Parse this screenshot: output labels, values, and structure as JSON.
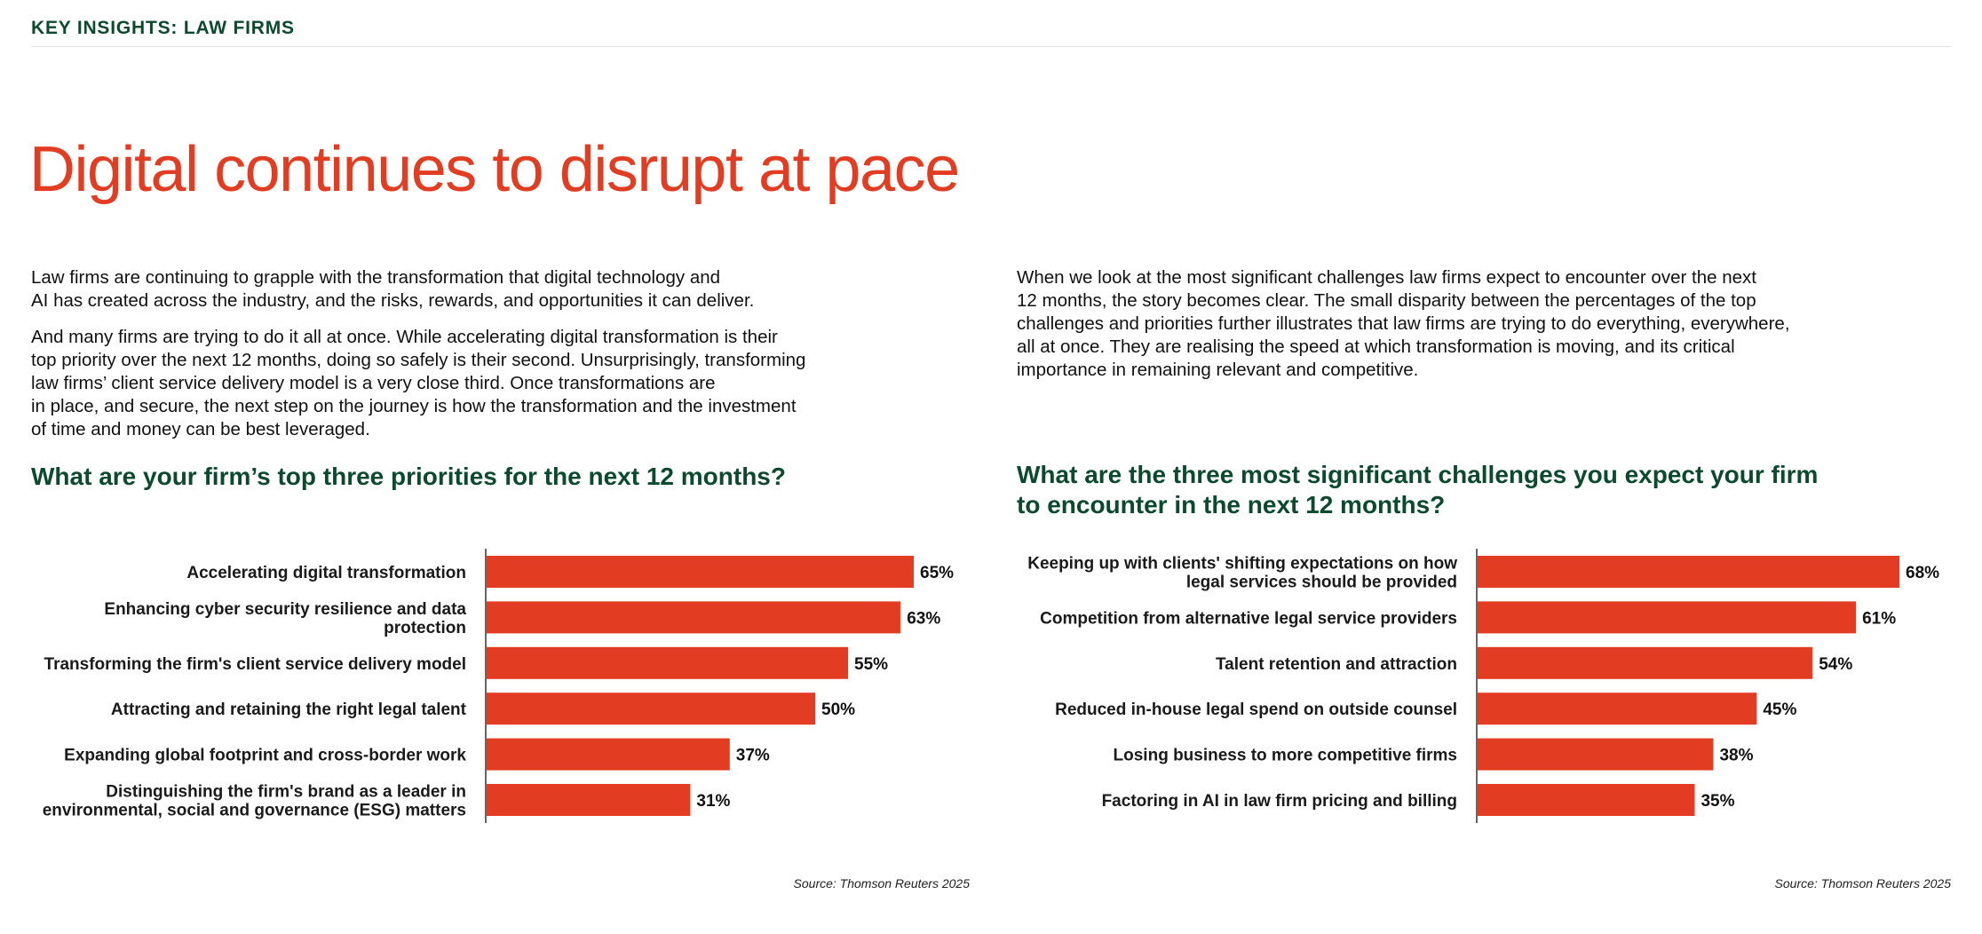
{
  "header": {
    "label": "KEY INSIGHTS: LAW FIRMS"
  },
  "title": "Digital continues to disrupt at pace",
  "intro": {
    "left": [
      "Law firms are continuing to grapple with the transformation that digital technology and\nAI has created across the industry, and the risks, rewards, and opportunities it can deliver.",
      "And many firms are trying to do it all at once. While accelerating digital transformation is their\ntop priority over the next 12 months, doing so safely is their second. Unsurprisingly, transforming\nlaw firms’ client service delivery model is a very close third. Once transformations are\nin place, and secure, the next step on the journey is how the transformation and the investment\nof time and money can be best leveraged."
    ],
    "right": [
      "When we look at the most significant challenges law firms expect to encounter over the next\n12 months, the story becomes clear. The small disparity between the percentages of the top\nchallenges and priorities further illustrates that law firms are trying to do everything, everywhere,\nall at once. They are realising the speed at which transformation is moving, and its critical\nimportance in remaining relevant and competitive."
    ]
  },
  "colors": {
    "bar": "#e23d22",
    "heading": "#0b4a2e",
    "title": "#e23d22"
  },
  "chart_data": [
    {
      "type": "bar",
      "orientation": "horizontal",
      "title": "What are your firm’s top three priorities for the next 12 months?",
      "categories": [
        "Accelerating digital transformation",
        "Enhancing cyber security resilience and data\nprotection",
        "Transforming the firm's client service delivery model",
        "Attracting and retaining the right legal talent",
        "Expanding global footprint and cross-border work",
        "Distinguishing the firm's brand as a leader in\nenvironmental, social and governance (ESG) matters"
      ],
      "values": [
        65,
        63,
        55,
        50,
        37,
        31
      ],
      "value_labels": [
        "65%",
        "63%",
        "55%",
        "50%",
        "37%",
        "31%"
      ],
      "unit": "%",
      "xlim": [
        0,
        65
      ],
      "source": "Source: Thomson Reuters 2025"
    },
    {
      "type": "bar",
      "orientation": "horizontal",
      "title": "What are the three most significant challenges you expect your firm\nto encounter in the next 12 months?",
      "categories": [
        "Keeping up with clients' shifting expectations on how\nlegal services should be provided",
        "Competition from alternative legal service providers",
        "Talent retention and attraction",
        "Reduced in-house legal spend on outside counsel",
        "Losing business to more competitive firms",
        "Factoring in AI in law firm pricing and billing"
      ],
      "values": [
        68,
        61,
        54,
        45,
        38,
        35
      ],
      "value_labels": [
        "68%",
        "61%",
        "54%",
        "45%",
        "38%",
        "35%"
      ],
      "unit": "%",
      "xlim": [
        0,
        68
      ],
      "source": "Source: Thomson Reuters 2025"
    }
  ]
}
